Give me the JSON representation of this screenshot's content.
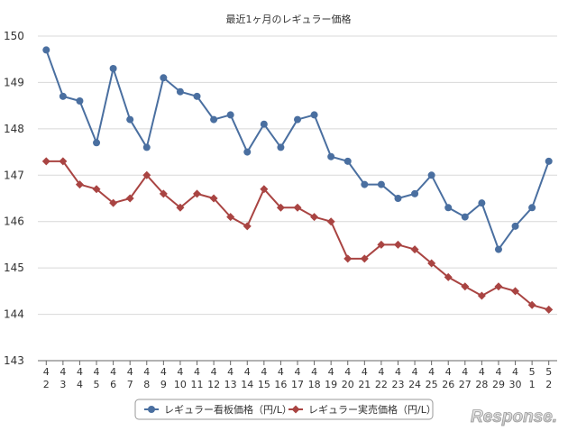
{
  "chart_data": {
    "type": "line",
    "title": "最近1ヶ月のレギュラー価格",
    "categories": [
      [
        "4",
        "2"
      ],
      [
        "4",
        "3"
      ],
      [
        "4",
        "4"
      ],
      [
        "4",
        "5"
      ],
      [
        "4",
        "6"
      ],
      [
        "4",
        "7"
      ],
      [
        "4",
        "8"
      ],
      [
        "4",
        "9"
      ],
      [
        "4",
        "10"
      ],
      [
        "4",
        "11"
      ],
      [
        "4",
        "12"
      ],
      [
        "4",
        "13"
      ],
      [
        "4",
        "14"
      ],
      [
        "4",
        "15"
      ],
      [
        "4",
        "16"
      ],
      [
        "4",
        "17"
      ],
      [
        "4",
        "18"
      ],
      [
        "4",
        "19"
      ],
      [
        "4",
        "20"
      ],
      [
        "4",
        "21"
      ],
      [
        "4",
        "22"
      ],
      [
        "4",
        "23"
      ],
      [
        "4",
        "24"
      ],
      [
        "4",
        "25"
      ],
      [
        "4",
        "26"
      ],
      [
        "4",
        "27"
      ],
      [
        "4",
        "28"
      ],
      [
        "4",
        "29"
      ],
      [
        "4",
        "30"
      ],
      [
        "5",
        "1"
      ],
      [
        "5",
        "2"
      ]
    ],
    "series": [
      {
        "name": "レギュラー看板価格（円/L）",
        "color": "#4a6fa0",
        "marker": "circle",
        "values": [
          149.7,
          148.7,
          148.6,
          147.7,
          149.3,
          148.2,
          147.6,
          149.1,
          148.8,
          148.7,
          148.2,
          148.3,
          147.5,
          148.1,
          147.6,
          148.2,
          148.3,
          147.4,
          147.3,
          146.8,
          146.8,
          146.5,
          146.6,
          147.0,
          146.3,
          146.1,
          146.4,
          145.4,
          145.9,
          146.3,
          147.3
        ]
      },
      {
        "name": "レギュラー実売価格（円/L）",
        "color": "#a94442",
        "marker": "diamond",
        "values": [
          147.3,
          147.3,
          146.8,
          146.7,
          146.4,
          146.5,
          147.0,
          146.6,
          146.3,
          146.6,
          146.5,
          146.1,
          145.9,
          146.7,
          146.3,
          146.3,
          146.1,
          146.0,
          145.2,
          145.2,
          145.5,
          145.5,
          145.4,
          145.1,
          144.8,
          144.6,
          144.4,
          144.6,
          144.5,
          144.2,
          144.1
        ]
      }
    ],
    "ylim": [
      143,
      150
    ],
    "yticks": [
      143,
      144,
      145,
      146,
      147,
      148,
      149,
      150
    ],
    "grid": true,
    "legend_position": "bottom-center",
    "axis_color": "#666666",
    "grid_color": "#d8d8d8",
    "text_color": "#333333"
  },
  "watermark": {
    "text": "Response."
  }
}
